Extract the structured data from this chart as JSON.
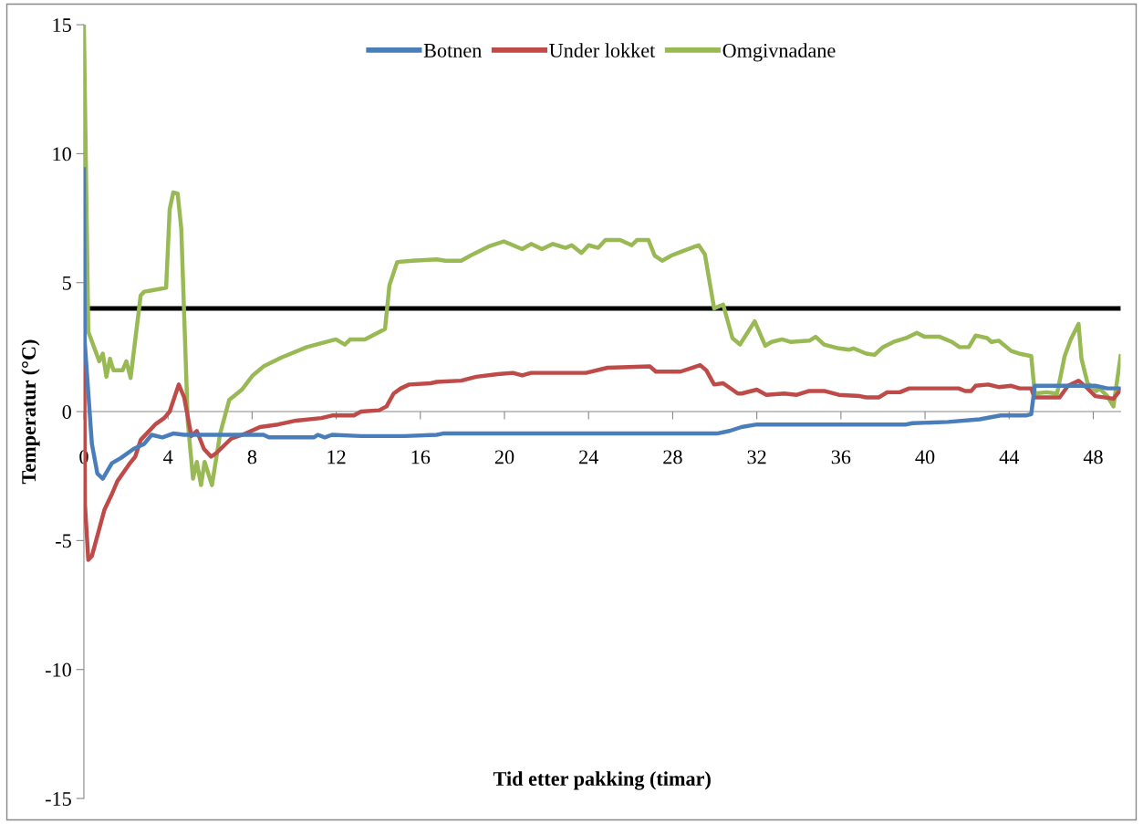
{
  "chart_data": {
    "type": "line",
    "xlabel": "Tid etter pakking (timar)",
    "ylabel": "Temperatur (°C)",
    "xlim": [
      0,
      49.3
    ],
    "xticks": [
      0,
      4,
      8,
      12,
      16,
      20,
      24,
      28,
      32,
      36,
      40,
      44,
      48
    ],
    "ylim": [
      -15,
      15
    ],
    "yticks": [
      -15,
      -10,
      -5,
      0,
      5,
      10,
      15
    ],
    "grid": false,
    "legend": "top",
    "ref_lines": [
      {
        "axis": "y",
        "value": 4,
        "color": "#000000"
      }
    ],
    "series": [
      {
        "name": "Botnen",
        "color": "#4a7ebb",
        "x": [
          0,
          0.04,
          0.38,
          0.64,
          0.9,
          1.33,
          1.76,
          2.36,
          2.87,
          3.22,
          3.73,
          4.25,
          4.77,
          8.54,
          8.8,
          10.95,
          11.12,
          11.46,
          11.8,
          13.18,
          15.24,
          16.78,
          17.07,
          30.1,
          30.7,
          31.27,
          32.0,
          39.1,
          39.4,
          41.1,
          42.6,
          43.6,
          44.8,
          45.05,
          45.22,
          48.1,
          48.67,
          49.3
        ],
        "values": [
          9.4,
          2.7,
          -1.25,
          -2.4,
          -2.6,
          -2.0,
          -1.8,
          -1.45,
          -1.25,
          -0.9,
          -1.0,
          -0.85,
          -0.9,
          -0.9,
          -1.0,
          -1.0,
          -0.9,
          -1.0,
          -0.9,
          -0.95,
          -0.95,
          -0.9,
          -0.85,
          -0.85,
          -0.75,
          -0.6,
          -0.5,
          -0.5,
          -0.45,
          -0.4,
          -0.3,
          -0.15,
          -0.15,
          -0.1,
          1.0,
          1.0,
          0.9,
          0.9
        ]
      },
      {
        "name": "Under lokket",
        "color": "#be4b48",
        "x": [
          0,
          0.05,
          0.21,
          0.38,
          0.98,
          1.33,
          1.59,
          2.19,
          2.44,
          2.7,
          3.39,
          3.82,
          4.08,
          4.51,
          4.77,
          5.11,
          5.37,
          5.71,
          6.05,
          6.31,
          7.0,
          7.69,
          8.37,
          9.23,
          10.09,
          11.3,
          11.8,
          12.84,
          13.18,
          14.04,
          14.39,
          14.73,
          15.07,
          15.47,
          16.49,
          16.78,
          17.94,
          18.66,
          19.68,
          20.4,
          20.84,
          21.27,
          22.57,
          23.88,
          24.9,
          26.92,
          27.2,
          28.37,
          29.31,
          29.6,
          29.97,
          30.4,
          31.1,
          31.28,
          32.0,
          32.44,
          33.3,
          33.9,
          34.5,
          35.2,
          35.9,
          36.9,
          37.2,
          37.8,
          38.2,
          38.8,
          39.25,
          41.6,
          41.9,
          42.2,
          42.4,
          43.0,
          43.5,
          44.1,
          44.5,
          45.05,
          45.2,
          46.4,
          46.8,
          47.3,
          47.73,
          48.1,
          48.96,
          49.3
        ],
        "values": [
          5.0,
          -3.6,
          -5.75,
          -5.6,
          -3.8,
          -3.2,
          -2.7,
          -2.0,
          -1.75,
          -1.1,
          -0.5,
          -0.25,
          0.0,
          1.05,
          0.55,
          -0.95,
          -0.75,
          -1.45,
          -1.75,
          -1.6,
          -1.05,
          -0.85,
          -0.6,
          -0.5,
          -0.35,
          -0.25,
          -0.15,
          -0.15,
          0.0,
          0.05,
          0.2,
          0.7,
          0.9,
          1.05,
          1.1,
          1.15,
          1.2,
          1.35,
          1.45,
          1.5,
          1.4,
          1.5,
          1.5,
          1.5,
          1.7,
          1.75,
          1.55,
          1.55,
          1.8,
          1.6,
          1.05,
          1.1,
          0.7,
          0.7,
          0.85,
          0.65,
          0.7,
          0.65,
          0.8,
          0.8,
          0.65,
          0.6,
          0.55,
          0.55,
          0.75,
          0.75,
          0.9,
          0.9,
          0.8,
          0.8,
          1.0,
          1.05,
          0.95,
          1.0,
          0.9,
          0.9,
          0.55,
          0.55,
          1.0,
          1.2,
          0.9,
          0.6,
          0.5,
          0.85
        ]
      },
      {
        "name": "Omgivnadane",
        "color": "#98b954",
        "x": [
          0,
          0.21,
          0.73,
          0.9,
          1.07,
          1.24,
          1.41,
          1.84,
          2.02,
          2.22,
          2.7,
          2.87,
          3.22,
          3.91,
          4.08,
          4.25,
          4.46,
          4.63,
          4.94,
          5.19,
          5.37,
          5.57,
          5.74,
          6.09,
          6.48,
          6.91,
          7.51,
          8.03,
          8.54,
          9.4,
          10.6,
          11.98,
          12.41,
          12.67,
          13.36,
          14.2,
          14.32,
          14.53,
          14.9,
          15.62,
          16.78,
          17.2,
          17.94,
          18.5,
          19.24,
          19.97,
          20.84,
          21.27,
          21.78,
          22.3,
          22.9,
          23.2,
          23.66,
          24.0,
          24.46,
          24.8,
          25.5,
          26.05,
          26.3,
          26.85,
          27.14,
          27.5,
          27.94,
          28.4,
          29.24,
          29.53,
          29.97,
          30.4,
          30.84,
          31.2,
          31.9,
          32.4,
          32.7,
          33.2,
          33.6,
          34.5,
          34.8,
          35.2,
          35.9,
          36.4,
          36.6,
          37.2,
          37.6,
          38.0,
          38.5,
          39.1,
          39.61,
          39.97,
          40.7,
          41.28,
          41.64,
          42.08,
          42.41,
          42.95,
          43.16,
          43.5,
          44.1,
          44.47,
          45.05,
          45.22,
          45.77,
          46.28,
          46.64,
          46.93,
          47.3,
          47.44,
          47.73,
          48.16,
          48.3,
          48.67,
          48.96,
          49.3
        ],
        "values": [
          15.0,
          3.1,
          1.95,
          2.25,
          1.35,
          2.05,
          1.6,
          1.6,
          1.95,
          1.3,
          4.5,
          4.65,
          4.7,
          4.8,
          7.85,
          8.5,
          8.45,
          7.1,
          -0.4,
          -2.6,
          -1.95,
          -2.85,
          -1.95,
          -2.85,
          -0.85,
          0.45,
          0.85,
          1.4,
          1.75,
          2.1,
          2.5,
          2.8,
          2.6,
          2.8,
          2.8,
          3.15,
          3.2,
          4.9,
          5.8,
          5.85,
          5.9,
          5.85,
          5.85,
          6.1,
          6.4,
          6.6,
          6.3,
          6.5,
          6.3,
          6.5,
          6.35,
          6.45,
          6.15,
          6.45,
          6.35,
          6.65,
          6.65,
          6.45,
          6.65,
          6.65,
          6.05,
          5.85,
          6.05,
          6.2,
          6.45,
          6.1,
          4.0,
          4.15,
          2.85,
          2.6,
          3.5,
          2.55,
          2.7,
          2.8,
          2.7,
          2.75,
          2.9,
          2.6,
          2.45,
          2.4,
          2.45,
          2.25,
          2.2,
          2.5,
          2.7,
          2.85,
          3.05,
          2.9,
          2.9,
          2.7,
          2.5,
          2.5,
          2.95,
          2.85,
          2.7,
          2.75,
          2.35,
          2.25,
          2.15,
          0.7,
          0.75,
          0.7,
          2.15,
          2.8,
          3.4,
          2.05,
          1.1,
          0.8,
          0.9,
          0.6,
          0.2,
          2.15
        ]
      }
    ]
  }
}
